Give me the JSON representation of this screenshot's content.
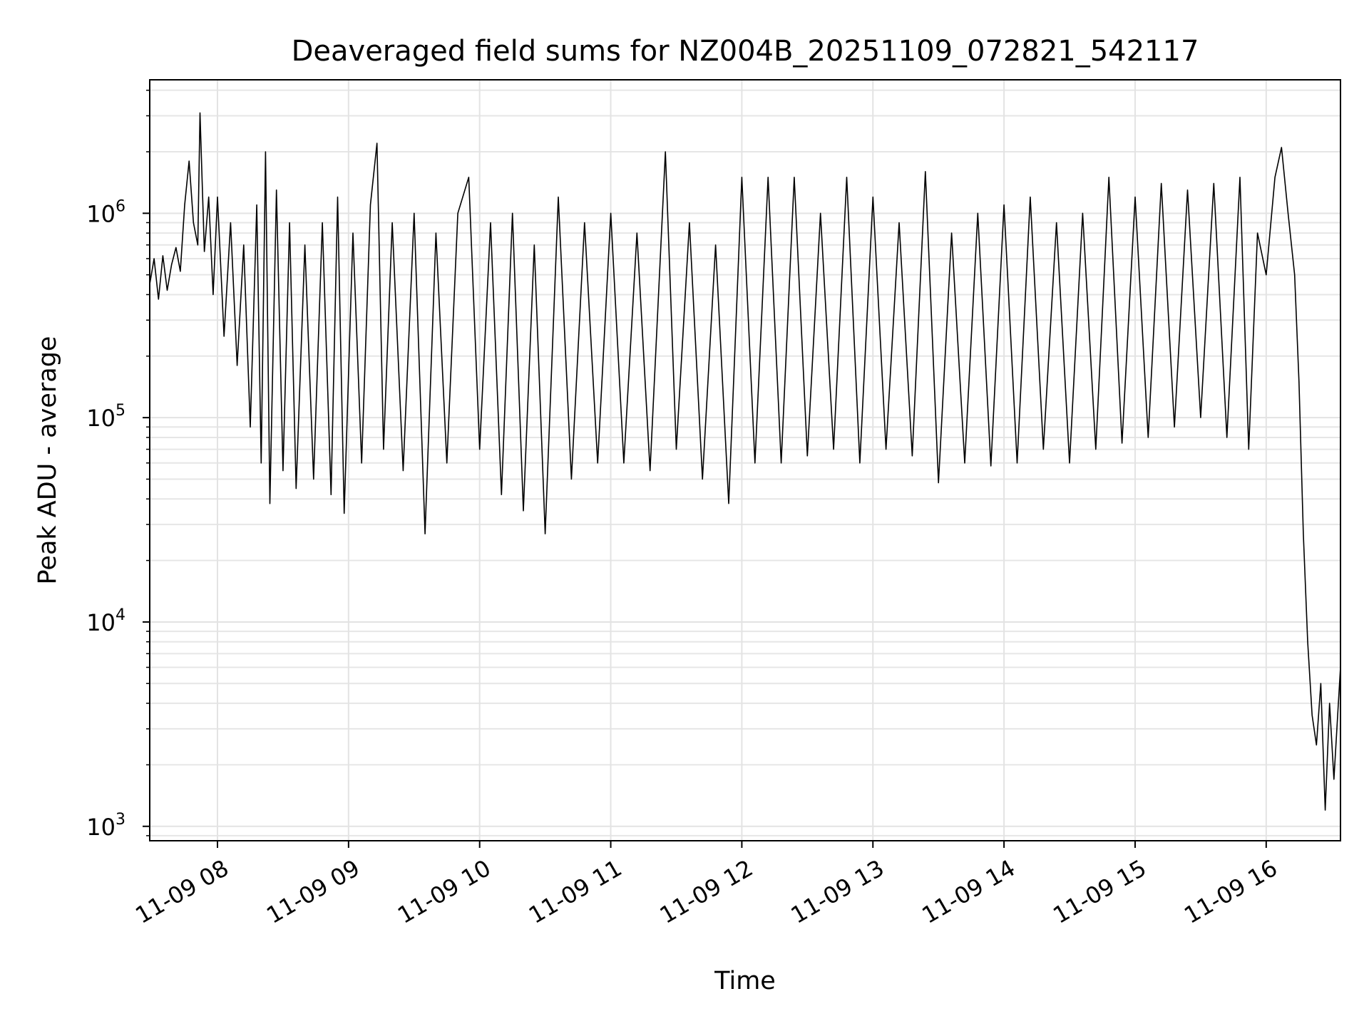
{
  "chart_data": {
    "type": "line",
    "title": "Deaveraged field sums for NZ004B_20251109_072821_542117",
    "xlabel": "Time",
    "ylabel": "Peak ADU - average",
    "yscale": "log",
    "ylim": [
      850,
      4500000
    ],
    "xlim": [
      "2025-11-09 07:29",
      "2025-11-09 16:34"
    ],
    "grid": true,
    "x_ticks": [
      {
        "value": "2025-11-09 08:00",
        "label": "11-09 08"
      },
      {
        "value": "2025-11-09 09:00",
        "label": "11-09 09"
      },
      {
        "value": "2025-11-09 10:00",
        "label": "11-09 10"
      },
      {
        "value": "2025-11-09 11:00",
        "label": "11-09 11"
      },
      {
        "value": "2025-11-09 12:00",
        "label": "11-09 12"
      },
      {
        "value": "2025-11-09 13:00",
        "label": "11-09 13"
      },
      {
        "value": "2025-11-09 14:00",
        "label": "11-09 14"
      },
      {
        "value": "2025-11-09 15:00",
        "label": "11-09 15"
      },
      {
        "value": "2025-11-09 16:00",
        "label": "11-09 16"
      }
    ],
    "y_ticks": [
      {
        "value": 1000,
        "base": "10",
        "exp": "3"
      },
      {
        "value": 10000,
        "base": "10",
        "exp": "4"
      },
      {
        "value": 100000,
        "base": "10",
        "exp": "5"
      },
      {
        "value": 1000000,
        "base": "10",
        "exp": "6"
      }
    ],
    "series": [
      {
        "color": "#000000",
        "points": [
          [
            "2025-11-09 07:29",
            450000
          ],
          [
            "2025-11-09 07:31",
            600000
          ],
          [
            "2025-11-09 07:33",
            380000
          ],
          [
            "2025-11-09 07:35",
            620000
          ],
          [
            "2025-11-09 07:37",
            420000
          ],
          [
            "2025-11-09 07:39",
            560000
          ],
          [
            "2025-11-09 07:41",
            680000
          ],
          [
            "2025-11-09 07:43",
            520000
          ],
          [
            "2025-11-09 07:45",
            1100000
          ],
          [
            "2025-11-09 07:47",
            1800000
          ],
          [
            "2025-11-09 07:49",
            900000
          ],
          [
            "2025-11-09 07:51",
            700000
          ],
          [
            "2025-11-09 07:52",
            3100000
          ],
          [
            "2025-11-09 07:54",
            650000
          ],
          [
            "2025-11-09 07:56",
            1200000
          ],
          [
            "2025-11-09 07:58",
            400000
          ],
          [
            "2025-11-09 08:00",
            1200000
          ],
          [
            "2025-11-09 08:03",
            250000
          ],
          [
            "2025-11-09 08:06",
            900000
          ],
          [
            "2025-11-09 08:09",
            180000
          ],
          [
            "2025-11-09 08:12",
            700000
          ],
          [
            "2025-11-09 08:15",
            90000
          ],
          [
            "2025-11-09 08:18",
            1100000
          ],
          [
            "2025-11-09 08:20",
            60000
          ],
          [
            "2025-11-09 08:22",
            2000000
          ],
          [
            "2025-11-09 08:24",
            38000
          ],
          [
            "2025-11-09 08:27",
            1300000
          ],
          [
            "2025-11-09 08:30",
            55000
          ],
          [
            "2025-11-09 08:33",
            900000
          ],
          [
            "2025-11-09 08:36",
            45000
          ],
          [
            "2025-11-09 08:40",
            700000
          ],
          [
            "2025-11-09 08:44",
            50000
          ],
          [
            "2025-11-09 08:48",
            900000
          ],
          [
            "2025-11-09 08:52",
            42000
          ],
          [
            "2025-11-09 08:55",
            1200000
          ],
          [
            "2025-11-09 08:58",
            34000
          ],
          [
            "2025-11-09 09:02",
            800000
          ],
          [
            "2025-11-09 09:06",
            60000
          ],
          [
            "2025-11-09 09:10",
            1100000
          ],
          [
            "2025-11-09 09:13",
            2200000
          ],
          [
            "2025-11-09 09:16",
            70000
          ],
          [
            "2025-11-09 09:20",
            900000
          ],
          [
            "2025-11-09 09:25",
            55000
          ],
          [
            "2025-11-09 09:30",
            1000000
          ],
          [
            "2025-11-09 09:35",
            27000
          ],
          [
            "2025-11-09 09:40",
            800000
          ],
          [
            "2025-11-09 09:45",
            60000
          ],
          [
            "2025-11-09 09:50",
            1000000
          ],
          [
            "2025-11-09 09:55",
            1500000
          ],
          [
            "2025-11-09 10:00",
            70000
          ],
          [
            "2025-11-09 10:05",
            900000
          ],
          [
            "2025-11-09 10:10",
            42000
          ],
          [
            "2025-11-09 10:15",
            1000000
          ],
          [
            "2025-11-09 10:20",
            35000
          ],
          [
            "2025-11-09 10:25",
            700000
          ],
          [
            "2025-11-09 10:30",
            27000
          ],
          [
            "2025-11-09 10:36",
            1200000
          ],
          [
            "2025-11-09 10:42",
            50000
          ],
          [
            "2025-11-09 10:48",
            900000
          ],
          [
            "2025-11-09 10:54",
            60000
          ],
          [
            "2025-11-09 11:00",
            1000000
          ],
          [
            "2025-11-09 11:06",
            60000
          ],
          [
            "2025-11-09 11:12",
            800000
          ],
          [
            "2025-11-09 11:18",
            55000
          ],
          [
            "2025-11-09 11:25",
            2000000
          ],
          [
            "2025-11-09 11:30",
            70000
          ],
          [
            "2025-11-09 11:36",
            900000
          ],
          [
            "2025-11-09 11:42",
            50000
          ],
          [
            "2025-11-09 11:48",
            700000
          ],
          [
            "2025-11-09 11:54",
            38000
          ],
          [
            "2025-11-09 12:00",
            1500000
          ],
          [
            "2025-11-09 12:06",
            60000
          ],
          [
            "2025-11-09 12:12",
            1500000
          ],
          [
            "2025-11-09 12:18",
            60000
          ],
          [
            "2025-11-09 12:24",
            1500000
          ],
          [
            "2025-11-09 12:30",
            65000
          ],
          [
            "2025-11-09 12:36",
            1000000
          ],
          [
            "2025-11-09 12:42",
            70000
          ],
          [
            "2025-11-09 12:48",
            1500000
          ],
          [
            "2025-11-09 12:54",
            60000
          ],
          [
            "2025-11-09 13:00",
            1200000
          ],
          [
            "2025-11-09 13:06",
            70000
          ],
          [
            "2025-11-09 13:12",
            900000
          ],
          [
            "2025-11-09 13:18",
            65000
          ],
          [
            "2025-11-09 13:24",
            1600000
          ],
          [
            "2025-11-09 13:30",
            48000
          ],
          [
            "2025-11-09 13:36",
            800000
          ],
          [
            "2025-11-09 13:42",
            60000
          ],
          [
            "2025-11-09 13:48",
            1000000
          ],
          [
            "2025-11-09 13:54",
            58000
          ],
          [
            "2025-11-09 14:00",
            1100000
          ],
          [
            "2025-11-09 14:06",
            60000
          ],
          [
            "2025-11-09 14:12",
            1200000
          ],
          [
            "2025-11-09 14:18",
            70000
          ],
          [
            "2025-11-09 14:24",
            900000
          ],
          [
            "2025-11-09 14:30",
            60000
          ],
          [
            "2025-11-09 14:36",
            1000000
          ],
          [
            "2025-11-09 14:42",
            70000
          ],
          [
            "2025-11-09 14:48",
            1500000
          ],
          [
            "2025-11-09 14:54",
            75000
          ],
          [
            "2025-11-09 15:00",
            1200000
          ],
          [
            "2025-11-09 15:06",
            80000
          ],
          [
            "2025-11-09 15:12",
            1400000
          ],
          [
            "2025-11-09 15:18",
            90000
          ],
          [
            "2025-11-09 15:24",
            1300000
          ],
          [
            "2025-11-09 15:30",
            100000
          ],
          [
            "2025-11-09 15:36",
            1400000
          ],
          [
            "2025-11-09 15:42",
            80000
          ],
          [
            "2025-11-09 15:48",
            1500000
          ],
          [
            "2025-11-09 15:52",
            70000
          ],
          [
            "2025-11-09 15:56",
            800000
          ],
          [
            "2025-11-09 16:00",
            500000
          ],
          [
            "2025-11-09 16:04",
            1500000
          ],
          [
            "2025-11-09 16:07",
            2100000
          ],
          [
            "2025-11-09 16:10",
            1000000
          ],
          [
            "2025-11-09 16:13",
            500000
          ],
          [
            "2025-11-09 16:15",
            150000
          ],
          [
            "2025-11-09 16:17",
            27000
          ],
          [
            "2025-11-09 16:19",
            8000
          ],
          [
            "2025-11-09 16:21",
            3500.0
          ],
          [
            "2025-11-09 16:23",
            2500
          ],
          [
            "2025-11-09 16:25",
            5000
          ],
          [
            "2025-11-09 16:27",
            1200
          ],
          [
            "2025-11-09 16:29",
            4000
          ],
          [
            "2025-11-09 16:31",
            1700
          ],
          [
            "2025-11-09 16:34",
            6000
          ]
        ]
      }
    ]
  }
}
